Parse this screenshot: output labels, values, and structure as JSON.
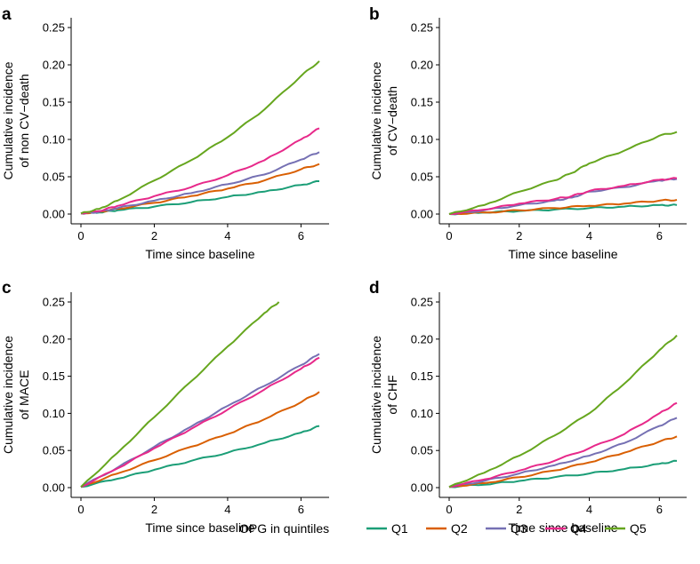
{
  "chart_data": [
    {
      "panel": "a",
      "type": "line",
      "ylabel_lines": [
        "Cumulative incidence",
        "of non CV−death"
      ],
      "xlabel": "Time since baseline",
      "xlim": [
        0,
        6.5
      ],
      "ylim": [
        0,
        0.25
      ],
      "xticks": [
        0,
        2,
        4,
        6
      ],
      "yticks": [
        "0.00",
        "0.05",
        "0.10",
        "0.15",
        "0.20",
        "0.25"
      ],
      "series": [
        {
          "name": "Q1",
          "x": [
            0,
            0.5,
            1,
            2,
            3,
            4,
            5,
            6,
            6.5
          ],
          "values": [
            0.001,
            0.002,
            0.005,
            0.01,
            0.016,
            0.023,
            0.03,
            0.039,
            0.044
          ]
        },
        {
          "name": "Q2",
          "x": [
            0,
            0.5,
            1,
            2,
            3,
            4,
            5,
            6,
            6.5
          ],
          "values": [
            0.001,
            0.003,
            0.007,
            0.015,
            0.024,
            0.034,
            0.045,
            0.06,
            0.067
          ]
        },
        {
          "name": "Q3",
          "x": [
            0,
            0.5,
            1,
            2,
            3,
            4,
            5,
            6,
            6.5
          ],
          "values": [
            0.001,
            0.003,
            0.008,
            0.018,
            0.028,
            0.04,
            0.053,
            0.073,
            0.083
          ]
        },
        {
          "name": "Q4",
          "x": [
            0,
            0.5,
            1,
            2,
            3,
            4,
            5,
            6,
            6.5
          ],
          "values": [
            0.001,
            0.004,
            0.011,
            0.024,
            0.036,
            0.052,
            0.072,
            0.1,
            0.115
          ]
        },
        {
          "name": "Q5",
          "x": [
            0,
            0.5,
            1,
            2,
            3,
            4,
            5,
            6,
            6.5
          ],
          "values": [
            0.001,
            0.007,
            0.018,
            0.045,
            0.072,
            0.103,
            0.14,
            0.185,
            0.205
          ]
        }
      ]
    },
    {
      "panel": "b",
      "type": "line",
      "ylabel_lines": [
        "Cumulative incidence",
        "of CV−death"
      ],
      "xlabel": "Time since baseline",
      "xlim": [
        0,
        6.5
      ],
      "ylim": [
        0,
        0.25
      ],
      "xticks": [
        0,
        2,
        4,
        6
      ],
      "yticks": [
        "0.00",
        "0.05",
        "0.10",
        "0.15",
        "0.20",
        "0.25"
      ],
      "series": [
        {
          "name": "Q1",
          "x": [
            0,
            1,
            2,
            3,
            4,
            5,
            6,
            6.5
          ],
          "values": [
            0.0,
            0.002,
            0.004,
            0.006,
            0.008,
            0.01,
            0.012,
            0.012
          ]
        },
        {
          "name": "Q2",
          "x": [
            0,
            1,
            2,
            3,
            4,
            5,
            6,
            6.5
          ],
          "values": [
            0.0,
            0.002,
            0.005,
            0.008,
            0.011,
            0.014,
            0.018,
            0.019
          ]
        },
        {
          "name": "Q3",
          "x": [
            0,
            1,
            2,
            3,
            3.5,
            4,
            5,
            6,
            6.5
          ],
          "values": [
            0.0,
            0.005,
            0.012,
            0.018,
            0.022,
            0.03,
            0.036,
            0.045,
            0.047
          ]
        },
        {
          "name": "Q4",
          "x": [
            0,
            1,
            2,
            3,
            3.5,
            4,
            5,
            6,
            6.5
          ],
          "values": [
            0.0,
            0.006,
            0.014,
            0.02,
            0.024,
            0.031,
            0.038,
            0.046,
            0.048
          ]
        },
        {
          "name": "Q5",
          "x": [
            0,
            1,
            2,
            3,
            3.5,
            4,
            5,
            6,
            6.5
          ],
          "values": [
            0.0,
            0.012,
            0.03,
            0.045,
            0.055,
            0.068,
            0.085,
            0.105,
            0.11
          ]
        }
      ]
    },
    {
      "panel": "c",
      "type": "line",
      "ylabel_lines": [
        "Cumulative incidence",
        "of MACE"
      ],
      "xlabel": "Time since baseline",
      "xlim": [
        0,
        6.5
      ],
      "ylim": [
        0,
        0.25
      ],
      "xticks": [
        0,
        2,
        4,
        6
      ],
      "yticks": [
        "0.00",
        "0.05",
        "0.10",
        "0.15",
        "0.20",
        "0.25"
      ],
      "series": [
        {
          "name": "Q1",
          "x": [
            0,
            1,
            2,
            3,
            4,
            5,
            6,
            6.5
          ],
          "values": [
            0.001,
            0.012,
            0.024,
            0.036,
            0.047,
            0.06,
            0.074,
            0.083
          ]
        },
        {
          "name": "Q2",
          "x": [
            0,
            1,
            2,
            3,
            4,
            5,
            6,
            6.5
          ],
          "values": [
            0.001,
            0.019,
            0.037,
            0.055,
            0.072,
            0.092,
            0.115,
            0.129
          ]
        },
        {
          "name": "Q3",
          "x": [
            0,
            1,
            2,
            3,
            4,
            5,
            6,
            6.5
          ],
          "values": [
            0.001,
            0.027,
            0.055,
            0.082,
            0.11,
            0.137,
            0.165,
            0.18
          ]
        },
        {
          "name": "Q4",
          "x": [
            0,
            1,
            2,
            3,
            4,
            5,
            6,
            6.5
          ],
          "values": [
            0.001,
            0.026,
            0.053,
            0.079,
            0.105,
            0.132,
            0.16,
            0.175
          ]
        },
        {
          "name": "Q5",
          "x": [
            0,
            1,
            2,
            3,
            4,
            5,
            5.4
          ],
          "values": [
            0.001,
            0.047,
            0.095,
            0.143,
            0.19,
            0.235,
            0.25
          ]
        }
      ]
    },
    {
      "panel": "d",
      "type": "line",
      "ylabel_lines": [
        "Cumulative incidence",
        "of CHF"
      ],
      "xlabel": "Time since baseline",
      "xlim": [
        0,
        6.5
      ],
      "ylim": [
        0,
        0.25
      ],
      "xticks": [
        0,
        2,
        4,
        6
      ],
      "yticks": [
        "0.00",
        "0.05",
        "0.10",
        "0.15",
        "0.20",
        "0.25"
      ],
      "series": [
        {
          "name": "Q1",
          "x": [
            0,
            1,
            2,
            3,
            4,
            5,
            6,
            6.5
          ],
          "values": [
            0.001,
            0.004,
            0.009,
            0.014,
            0.019,
            0.025,
            0.032,
            0.036
          ]
        },
        {
          "name": "Q2",
          "x": [
            0,
            1,
            2,
            3,
            4,
            5,
            6,
            6.5
          ],
          "values": [
            0.001,
            0.006,
            0.014,
            0.023,
            0.034,
            0.047,
            0.062,
            0.069
          ]
        },
        {
          "name": "Q3",
          "x": [
            0,
            1,
            2,
            3,
            4,
            5,
            6,
            6.5
          ],
          "values": [
            0.001,
            0.009,
            0.019,
            0.03,
            0.043,
            0.06,
            0.083,
            0.094
          ]
        },
        {
          "name": "Q4",
          "x": [
            0,
            1,
            2,
            3,
            4,
            5,
            6,
            6.5
          ],
          "values": [
            0.001,
            0.011,
            0.023,
            0.036,
            0.053,
            0.072,
            0.1,
            0.114
          ]
        },
        {
          "name": "Q5",
          "x": [
            0,
            1,
            2,
            3,
            4,
            5,
            6,
            6.5
          ],
          "values": [
            0.001,
            0.02,
            0.043,
            0.07,
            0.1,
            0.14,
            0.185,
            0.205
          ]
        }
      ]
    }
  ],
  "legend": {
    "title": "OPG in quintiles",
    "items": [
      {
        "label": "Q1",
        "color": "#1b9e77"
      },
      {
        "label": "Q2",
        "color": "#d95f02"
      },
      {
        "label": "Q3",
        "color": "#7570b3"
      },
      {
        "label": "Q4",
        "color": "#e7298a"
      },
      {
        "label": "Q5",
        "color": "#66a61e"
      }
    ]
  }
}
